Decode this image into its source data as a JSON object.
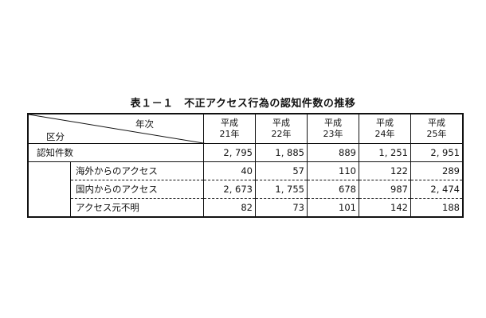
{
  "title": "表１－１　不正アクセス行為の認知件数の推移",
  "header": {
    "corner_top": "年次",
    "corner_bottom": "区分",
    "years": [
      [
        "平成",
        "21年"
      ],
      [
        "平成",
        "22年"
      ],
      [
        "平成",
        "23年"
      ],
      [
        "平成",
        "24年"
      ],
      [
        "平成",
        "25年"
      ]
    ]
  },
  "rows": [
    {
      "label": "認知件数",
      "values": [
        "2, 795",
        "1, 885",
        "889",
        "1, 251",
        "2, 951"
      ]
    },
    {
      "label": "海外からのアクセス",
      "values": [
        "40",
        "57",
        "110",
        "122",
        "289"
      ]
    },
    {
      "label": "国内からのアクセス",
      "values": [
        "2, 673",
        "1, 755",
        "678",
        "987",
        "2, 474"
      ]
    },
    {
      "label": "アクセス元不明",
      "values": [
        "82",
        "73",
        "101",
        "142",
        "188"
      ]
    }
  ]
}
